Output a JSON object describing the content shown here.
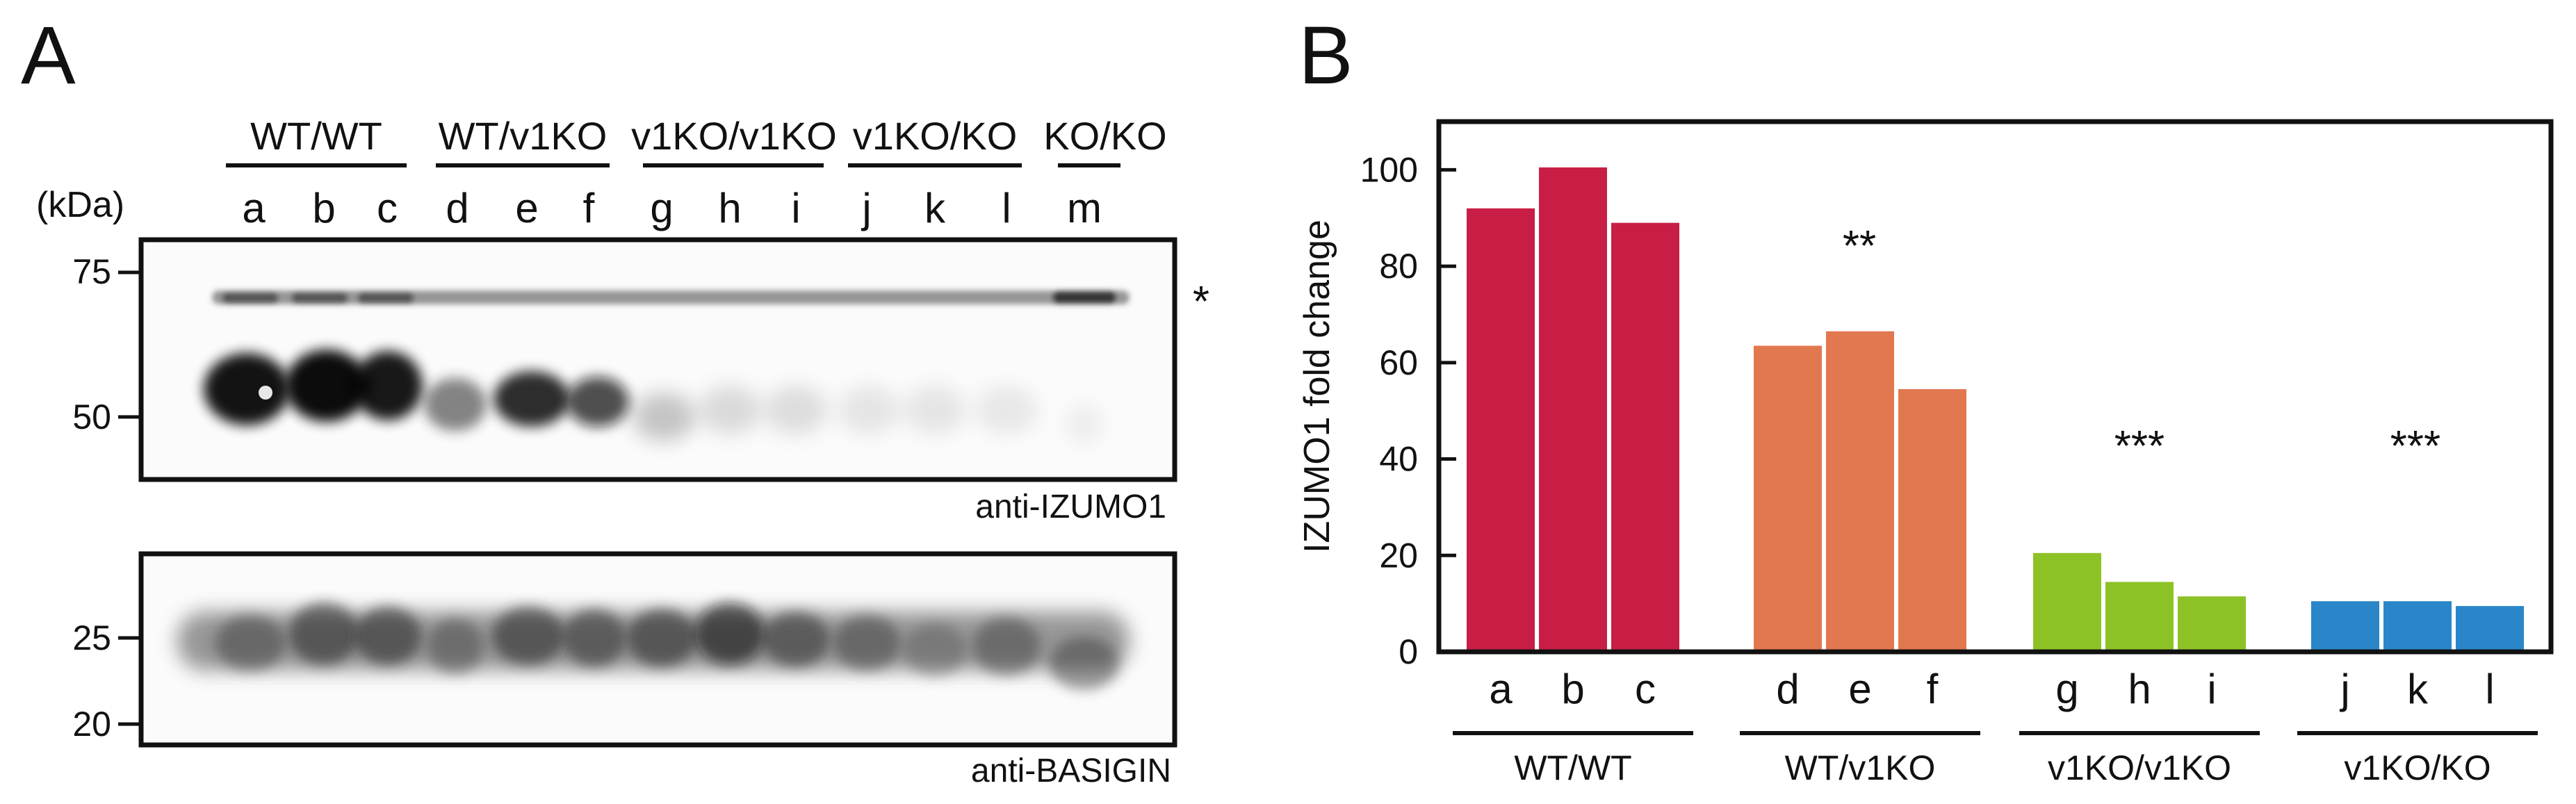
{
  "panel_a": {
    "label": "A",
    "kda_label": "(kDa)",
    "groups": [
      "WT/WT",
      "WT/v1KO",
      "v1KO/v1KO",
      "v1KO/KO",
      "KO/KO"
    ],
    "lanes": [
      "a",
      "b",
      "c",
      "d",
      "e",
      "f",
      "g",
      "h",
      "i",
      "j",
      "k",
      "l",
      "m"
    ],
    "blot1": {
      "markers": [
        "75",
        "50"
      ],
      "star": "*",
      "caption": "anti-IZUMO1"
    },
    "blot2": {
      "markers": [
        "25",
        "20"
      ],
      "caption": "anti-BASIGIN"
    }
  },
  "panel_b": {
    "label": "B",
    "significance": [
      "**",
      "***",
      "***"
    ]
  },
  "chart_data": {
    "type": "bar",
    "ylabel": "IZUMO1 fold change",
    "ylim": [
      0,
      110
    ],
    "yticks": [
      "0",
      "20",
      "40",
      "60",
      "80",
      "100"
    ],
    "categories": [
      "a",
      "b",
      "c",
      "d",
      "e",
      "f",
      "g",
      "h",
      "i",
      "j",
      "k",
      "l"
    ],
    "groups": [
      "WT/WT",
      "WT/v1KO",
      "v1KO/v1KO",
      "v1KO/KO"
    ],
    "values": [
      92,
      100.5,
      89,
      63.5,
      66.5,
      54.5,
      20.5,
      14.5,
      11.5,
      10.5,
      10.5,
      9.5
    ],
    "group_colors": [
      "#c81e45",
      "#e2784f",
      "#8dc226",
      "#2a86c8"
    ],
    "grid": false
  }
}
